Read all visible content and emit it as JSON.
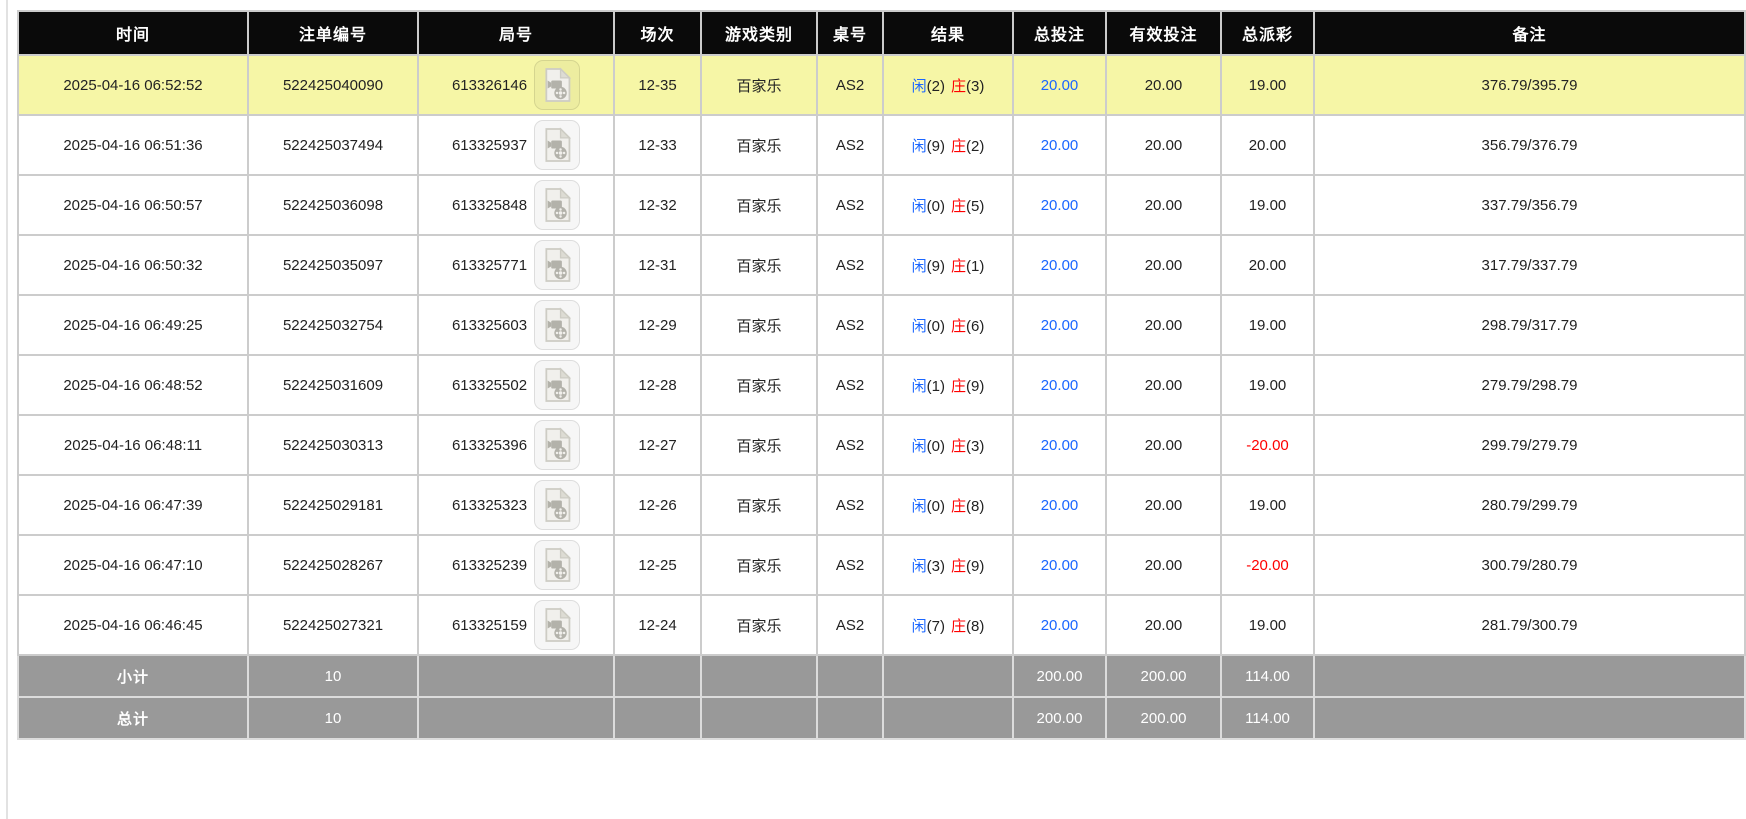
{
  "colors": {
    "header_bg": "#0a0a0a",
    "header_text": "#ffffff",
    "row_bg": "#ffffff",
    "highlight_row_bg": "#f6f6a6",
    "border": "#cccccc",
    "footer_bg": "#999999",
    "footer_text": "#ffffff",
    "text": "#222222",
    "blue": "#1a66ff",
    "red": "#ff0000"
  },
  "table": {
    "columns": [
      {
        "key": "time",
        "label": "时间"
      },
      {
        "key": "bet-id",
        "label": "注单编号"
      },
      {
        "key": "round-id",
        "label": "局号"
      },
      {
        "key": "session",
        "label": "场次"
      },
      {
        "key": "game-type",
        "label": "游戏类别"
      },
      {
        "key": "table-no",
        "label": "桌号"
      },
      {
        "key": "result",
        "label": "结果"
      },
      {
        "key": "total-bet",
        "label": "总投注"
      },
      {
        "key": "valid-bet",
        "label": "有效投注"
      },
      {
        "key": "total-payout",
        "label": "总派彩"
      },
      {
        "key": "remark",
        "label": "备注"
      }
    ],
    "video_icon": "video-replay-icon",
    "rows": [
      {
        "time": "2025-04-16 06:52:52",
        "bet_id": "522425040090",
        "round_id": "613326146",
        "session": "12-35",
        "game_type": "百家乐",
        "table_no": "AS2",
        "result": {
          "player": "闲",
          "player_score": "(2)",
          "banker": "庄",
          "banker_score": "(3)"
        },
        "total_bet": "20.00",
        "valid_bet": "20.00",
        "total_payout": "19.00",
        "remark": "376.79/395.79",
        "highlighted": true
      },
      {
        "time": "2025-04-16 06:51:36",
        "bet_id": "522425037494",
        "round_id": "613325937",
        "session": "12-33",
        "game_type": "百家乐",
        "table_no": "AS2",
        "result": {
          "player": "闲",
          "player_score": "(9)",
          "banker": "庄",
          "banker_score": "(2)"
        },
        "total_bet": "20.00",
        "valid_bet": "20.00",
        "total_payout": "20.00",
        "remark": "356.79/376.79",
        "highlighted": false
      },
      {
        "time": "2025-04-16 06:50:57",
        "bet_id": "522425036098",
        "round_id": "613325848",
        "session": "12-32",
        "game_type": "百家乐",
        "table_no": "AS2",
        "result": {
          "player": "闲",
          "player_score": "(0)",
          "banker": "庄",
          "banker_score": "(5)"
        },
        "total_bet": "20.00",
        "valid_bet": "20.00",
        "total_payout": "19.00",
        "remark": "337.79/356.79",
        "highlighted": false
      },
      {
        "time": "2025-04-16 06:50:32",
        "bet_id": "522425035097",
        "round_id": "613325771",
        "session": "12-31",
        "game_type": "百家乐",
        "table_no": "AS2",
        "result": {
          "player": "闲",
          "player_score": "(9)",
          "banker": "庄",
          "banker_score": "(1)"
        },
        "total_bet": "20.00",
        "valid_bet": "20.00",
        "total_payout": "20.00",
        "remark": "317.79/337.79",
        "highlighted": false
      },
      {
        "time": "2025-04-16 06:49:25",
        "bet_id": "522425032754",
        "round_id": "613325603",
        "session": "12-29",
        "game_type": "百家乐",
        "table_no": "AS2",
        "result": {
          "player": "闲",
          "player_score": "(0)",
          "banker": "庄",
          "banker_score": "(6)"
        },
        "total_bet": "20.00",
        "valid_bet": "20.00",
        "total_payout": "19.00",
        "remark": "298.79/317.79",
        "highlighted": false
      },
      {
        "time": "2025-04-16 06:48:52",
        "bet_id": "522425031609",
        "round_id": "613325502",
        "session": "12-28",
        "game_type": "百家乐",
        "table_no": "AS2",
        "result": {
          "player": "闲",
          "player_score": "(1)",
          "banker": "庄",
          "banker_score": "(9)"
        },
        "total_bet": "20.00",
        "valid_bet": "20.00",
        "total_payout": "19.00",
        "remark": "279.79/298.79",
        "highlighted": false
      },
      {
        "time": "2025-04-16 06:48:11",
        "bet_id": "522425030313",
        "round_id": "613325396",
        "session": "12-27",
        "game_type": "百家乐",
        "table_no": "AS2",
        "result": {
          "player": "闲",
          "player_score": "(0)",
          "banker": "庄",
          "banker_score": "(3)"
        },
        "total_bet": "20.00",
        "valid_bet": "20.00",
        "total_payout": "-20.00",
        "remark": "299.79/279.79",
        "highlighted": false
      },
      {
        "time": "2025-04-16 06:47:39",
        "bet_id": "522425029181",
        "round_id": "613325323",
        "session": "12-26",
        "game_type": "百家乐",
        "table_no": "AS2",
        "result": {
          "player": "闲",
          "player_score": "(0)",
          "banker": "庄",
          "banker_score": "(8)"
        },
        "total_bet": "20.00",
        "valid_bet": "20.00",
        "total_payout": "19.00",
        "remark": "280.79/299.79",
        "highlighted": false
      },
      {
        "time": "2025-04-16 06:47:10",
        "bet_id": "522425028267",
        "round_id": "613325239",
        "session": "12-25",
        "game_type": "百家乐",
        "table_no": "AS2",
        "result": {
          "player": "闲",
          "player_score": "(3)",
          "banker": "庄",
          "banker_score": "(9)"
        },
        "total_bet": "20.00",
        "valid_bet": "20.00",
        "total_payout": "-20.00",
        "remark": "300.79/280.79",
        "highlighted": false
      },
      {
        "time": "2025-04-16 06:46:45",
        "bet_id": "522425027321",
        "round_id": "613325159",
        "session": "12-24",
        "game_type": "百家乐",
        "table_no": "AS2",
        "result": {
          "player": "闲",
          "player_score": "(7)",
          "banker": "庄",
          "banker_score": "(8)"
        },
        "total_bet": "20.00",
        "valid_bet": "20.00",
        "total_payout": "19.00",
        "remark": "281.79/300.79",
        "highlighted": false
      }
    ],
    "subtotal": {
      "label": "小计",
      "bet_count": "10",
      "total_bet": "200.00",
      "valid_bet": "200.00",
      "total_payout": "114.00"
    },
    "grand_total": {
      "label": "总计",
      "bet_count": "10",
      "total_bet": "200.00",
      "valid_bet": "200.00",
      "total_payout": "114.00"
    }
  }
}
